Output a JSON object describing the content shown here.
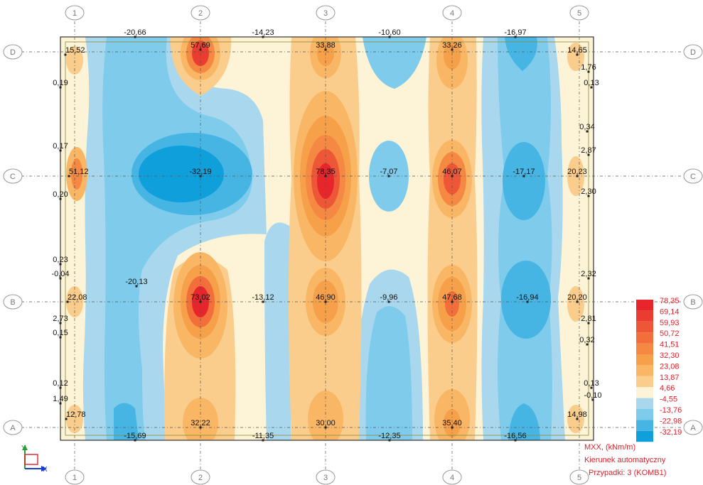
{
  "column_axes": [
    "1",
    "2",
    "3",
    "4",
    "5"
  ],
  "row_axes": [
    "D",
    "C",
    "B",
    "A"
  ],
  "values": {
    "top_edge": [
      "-20,66",
      "-14,23",
      "-10,60",
      "-16,97"
    ],
    "row_D": [
      "15,52",
      "57,69",
      "33,88",
      "33,26",
      "14,65"
    ],
    "row_C": [
      "51,12",
      "-32,19",
      "78,35",
      "-7,07",
      "46,07",
      "-17,17",
      "20,23"
    ],
    "row_B": [
      "22,08",
      "-20,13",
      "73,02",
      "-13,12",
      "46,90",
      "-9,96",
      "47,68",
      "-16,94",
      "20,20"
    ],
    "row_A": [
      "12,78",
      "32,22",
      "30,00",
      "35,40",
      "14,98"
    ],
    "bottom_edge": [
      "-15,69",
      "-11,35",
      "-12,35",
      "-16,56"
    ],
    "left_edge": [
      "0,19",
      "0,17",
      "0,20",
      "0,23",
      "-0,04",
      "2,73",
      "0,15",
      "0,12",
      "1,49"
    ],
    "right_edge": [
      "1,76",
      "0,13",
      "0,34",
      "2,87",
      "2,30",
      "2,32",
      "2,81",
      "0,32",
      "0,13",
      "-0,10"
    ]
  },
  "legend": {
    "values": [
      "78,35",
      "69,14",
      "59,93",
      "50,72",
      "41,51",
      "32,30",
      "23,08",
      "13,87",
      "4,66",
      "-4,55",
      "-13,76",
      "-22,98",
      "-32,19"
    ],
    "colors": [
      "#e8252b",
      "#ea3c30",
      "#ee5638",
      "#f26f3c",
      "#f58842",
      "#f7a04a",
      "#f9b766",
      "#fbcd8c",
      "#fdf3d6",
      "#a9d8ee",
      "#7fcbeb",
      "#46b5e4",
      "#0fa0dc"
    ]
  },
  "info": {
    "quantity": "MXX, (kNm/m)",
    "direction": "Kierunek automatyczny",
    "cases": "Przypadki: 3 (KOMB1)"
  },
  "triad": {
    "y_label": "Y",
    "x_label": "X"
  }
}
